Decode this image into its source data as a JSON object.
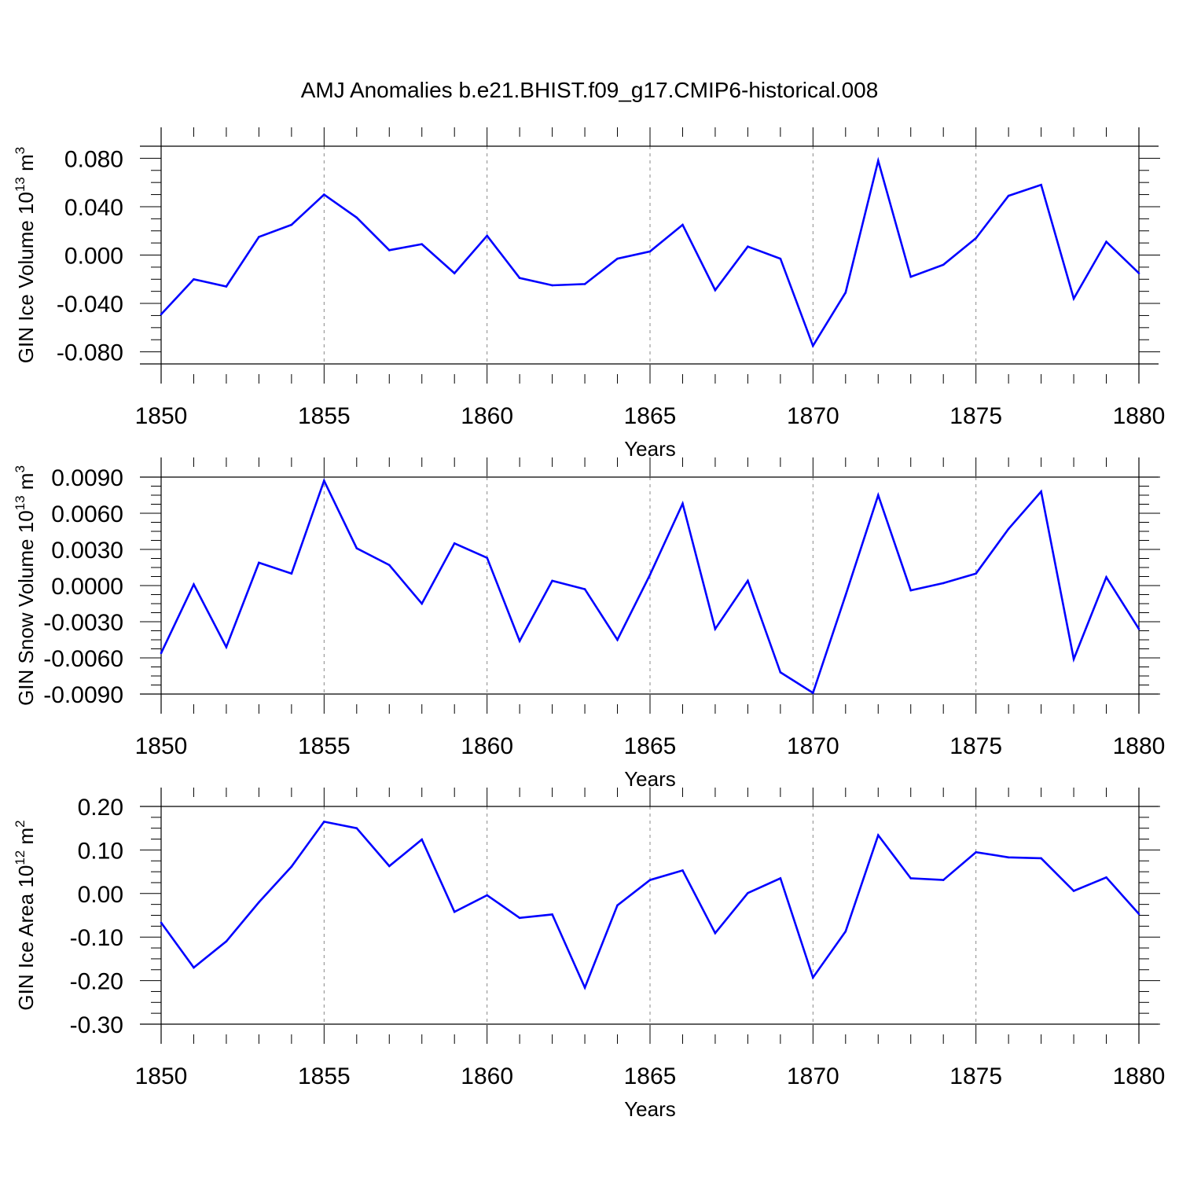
{
  "chart_data": {
    "type": "line",
    "title": "AMJ Anomalies b.e21.BHIST.f09_g17.CMIP6-historical.008",
    "line_color": "#0000ff",
    "grid_color": "#888888",
    "panels": [
      {
        "ylabel_main": "GIN Ice Volume 10",
        "ylabel_exp": "13",
        "ylabel_unit": " m",
        "ylabel_unit_exp": "3",
        "xlabel": "Years",
        "xlim": [
          1850,
          1880
        ],
        "ylim": [
          -0.09,
          0.09
        ],
        "yticks": [
          -0.08,
          -0.04,
          0.0,
          0.04,
          0.08
        ],
        "ytick_labels": [
          "-0.080",
          "-0.040",
          "0.000",
          "0.040",
          "0.080"
        ],
        "xticks": [
          1850,
          1855,
          1860,
          1865,
          1870,
          1875,
          1880
        ],
        "xtick_labels": [
          "1850",
          "1855",
          "1860",
          "1865",
          "1870",
          "1875",
          "1880"
        ],
        "x": [
          1850,
          1851,
          1852,
          1853,
          1854,
          1855,
          1856,
          1857,
          1858,
          1859,
          1860,
          1861,
          1862,
          1863,
          1864,
          1865,
          1866,
          1867,
          1868,
          1869,
          1870,
          1871,
          1872,
          1873,
          1874,
          1875,
          1876,
          1877,
          1878,
          1879,
          1880
        ],
        "values": [
          -0.049,
          -0.02,
          -0.026,
          0.015,
          0.025,
          0.05,
          0.031,
          0.004,
          0.009,
          -0.015,
          0.016,
          -0.019,
          -0.025,
          -0.024,
          -0.003,
          0.003,
          0.025,
          -0.029,
          0.007,
          -0.003,
          -0.075,
          -0.031,
          0.078,
          -0.018,
          -0.008,
          0.014,
          0.049,
          0.058,
          -0.036,
          0.011,
          -0.015
        ]
      },
      {
        "ylabel_main": "GIN Snow Volume 10",
        "ylabel_exp": "13",
        "ylabel_unit": " m",
        "ylabel_unit_exp": "3",
        "xlabel": "Years",
        "xlim": [
          1850,
          1880
        ],
        "ylim": [
          -0.009,
          0.009
        ],
        "yticks": [
          -0.009,
          -0.006,
          -0.003,
          0.0,
          0.003,
          0.006,
          0.009
        ],
        "ytick_labels": [
          "-0.0090",
          "-0.0060",
          "-0.0030",
          "0.0000",
          "0.0030",
          "0.0060",
          "0.0090"
        ],
        "xticks": [
          1850,
          1855,
          1860,
          1865,
          1870,
          1875,
          1880
        ],
        "xtick_labels": [
          "1850",
          "1855",
          "1860",
          "1865",
          "1870",
          "1875",
          "1880"
        ],
        "x": [
          1850,
          1851,
          1852,
          1853,
          1854,
          1855,
          1856,
          1857,
          1858,
          1859,
          1860,
          1861,
          1862,
          1863,
          1864,
          1865,
          1866,
          1867,
          1868,
          1869,
          1870,
          1871,
          1872,
          1873,
          1874,
          1875,
          1876,
          1877,
          1878,
          1879,
          1880
        ],
        "values": [
          -0.0056,
          0.0001,
          -0.0051,
          0.0019,
          0.001,
          0.0087,
          0.0031,
          0.0017,
          -0.0015,
          0.0035,
          0.0023,
          -0.0046,
          0.0004,
          -0.0003,
          -0.0045,
          0.0009,
          0.0068,
          -0.0036,
          0.0004,
          -0.0072,
          -0.0089,
          -0.0008,
          0.0075,
          -0.0004,
          0.0002,
          0.001,
          0.0047,
          0.0078,
          -0.0061,
          0.0007,
          -0.0036
        ]
      },
      {
        "ylabel_main": "GIN Ice Area 10",
        "ylabel_exp": "12",
        "ylabel_unit": " m",
        "ylabel_unit_exp": "2",
        "xlabel": "Years",
        "xlim": [
          1850,
          1880
        ],
        "ylim": [
          -0.3,
          0.2
        ],
        "yticks": [
          -0.3,
          -0.2,
          -0.1,
          0.0,
          0.1,
          0.2
        ],
        "ytick_labels": [
          "-0.30",
          "-0.20",
          "-0.10",
          "0.00",
          "0.10",
          "0.20"
        ],
        "xticks": [
          1850,
          1855,
          1860,
          1865,
          1870,
          1875,
          1880
        ],
        "xtick_labels": [
          "1850",
          "1855",
          "1860",
          "1865",
          "1870",
          "1875",
          "1880"
        ],
        "x": [
          1850,
          1851,
          1852,
          1853,
          1854,
          1855,
          1856,
          1857,
          1858,
          1859,
          1860,
          1861,
          1862,
          1863,
          1864,
          1865,
          1866,
          1867,
          1868,
          1869,
          1870,
          1871,
          1872,
          1873,
          1874,
          1875,
          1876,
          1877,
          1878,
          1879,
          1880
        ],
        "values": [
          -0.067,
          -0.17,
          -0.11,
          -0.02,
          0.062,
          0.165,
          0.15,
          0.063,
          0.124,
          -0.042,
          -0.004,
          -0.056,
          -0.048,
          -0.216,
          -0.027,
          0.031,
          0.053,
          -0.091,
          0.001,
          0.035,
          -0.193,
          -0.087,
          0.134,
          0.035,
          0.031,
          0.095,
          0.083,
          0.081,
          0.006,
          0.037,
          -0.047
        ]
      }
    ]
  }
}
